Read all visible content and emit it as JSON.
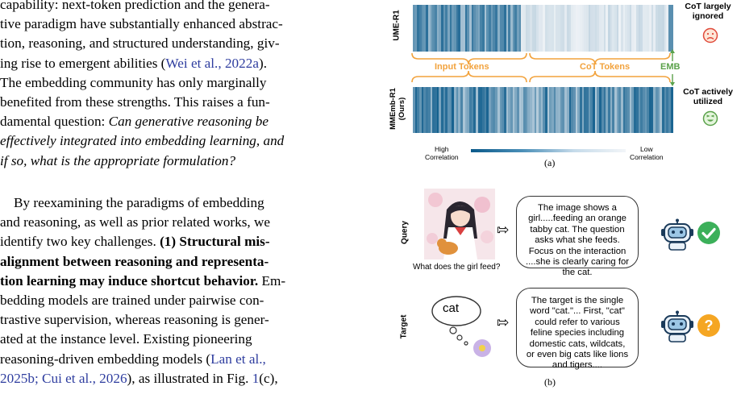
{
  "left_text": {
    "p1": [
      {
        "t": "capability: next-token prediction and the genera-"
      },
      {
        "t": "tive paradigm have substantially enhanced abstrac-"
      },
      {
        "t": "tion, reasoning, and structured understanding, giv-"
      },
      {
        "t": "ing rise to emergent abilities ("
      },
      {
        "t": "Wei et al.,"
      },
      {
        "t": "2022a"
      },
      {
        "t": ")."
      },
      {
        "t": "The embedding community has only marginally"
      },
      {
        "t": "benefited from these strengths. This raises a fun-"
      },
      {
        "t": "damental question: "
      },
      {
        "t": "Can generative reasoning be"
      },
      {
        "t": "effectively integrated into embedding learning, and"
      },
      {
        "t": "if so, what is the appropriate formulation?"
      }
    ],
    "p2": [
      {
        "t": "By reexamining the paradigms of embedding"
      },
      {
        "t": "and reasoning, as well as prior related works, we"
      },
      {
        "t": "identify two key challenges. "
      },
      {
        "t": "(1) Structural mis-"
      },
      {
        "t": "alignment between reasoning and representa-"
      },
      {
        "t": "tion learning may induce shortcut behavior."
      },
      {
        "t": " Em-"
      },
      {
        "t": "bedding models are trained under pairwise con-"
      },
      {
        "t": "trastive supervision, whereas reasoning is gener-"
      },
      {
        "t": "ated at the instance level. Existing pioneering"
      },
      {
        "t": "reasoning-driven embedding models ("
      },
      {
        "t": "Lan et al.,"
      },
      {
        "t": "2025b; Cui et al., 2026"
      },
      {
        "t": "), as illustrated in Fig. "
      },
      {
        "t": "1"
      },
      {
        "t": "(c),"
      }
    ]
  },
  "figure_a": {
    "row1_label": "UME-R1",
    "row2_label": "MMEmb-R1",
    "row2_sub": "(Ours)",
    "input_tokens": "Input Tokens",
    "cot_tokens": "CoT Tokens",
    "emb": "EMB",
    "note1": "CoT largely ignored",
    "note2": "CoT actively utilized",
    "high": "High",
    "high2": "Correlation",
    "low": "Low",
    "low2": "Correlation",
    "caption": "(a)",
    "colors": {
      "dark": "#0b5a8a",
      "light": "#eef2f6",
      "orange": "#f2a23c",
      "green": "#4caf50",
      "red": "#e04a3a"
    }
  },
  "figure_b": {
    "query_label": "Query",
    "target_label": "Target",
    "image_caption": "What does the girl feed?",
    "query_bubble": "The image shows a girl.....feeding an orange tabby cat. The question asks what she feeds. Focus on the interaction ....she is clearly caring for the cat.",
    "target_word": "cat",
    "target_bubble": "The target is the single word \"cat.\"... First, \"cat\" could refer to various feline species including domestic cats, wildcats, or even big cats like lions and tigers....",
    "caption": "(b)",
    "icons": [
      "robot-icon",
      "check-icon",
      "question-icon",
      "thinking-head-icon"
    ]
  }
}
